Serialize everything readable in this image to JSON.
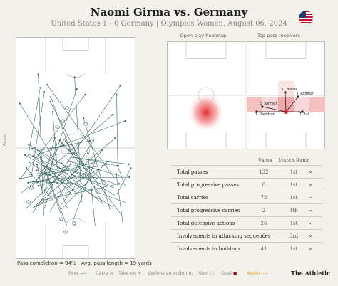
{
  "header": {
    "title": "Naomi Girma vs. Germany",
    "subtitle": "United States 1 - 0 Germany | Olympics Women, August 06, 2024",
    "flag_icon": "usa-flag-icon"
  },
  "pitch": {
    "side_label": "Attack",
    "pass_completion": "Pass completion = 94%",
    "avg_pass_length": "Avg. pass length = 19 yards"
  },
  "heatmap": {
    "title": "Open-play heatmap"
  },
  "receivers": {
    "title": "Top pass receivers",
    "players": [
      "L. Horan",
      "T. Rodman",
      "E. Sonnett",
      "T. Davidson",
      "T. Ball"
    ]
  },
  "stats": {
    "value_header": "Value",
    "rank_header": "Match Rank",
    "rows": [
      {
        "label": "Total passes",
        "value": "132",
        "rank": "1st"
      },
      {
        "label": "Total progressive passes",
        "value": "8",
        "rank": "1st"
      },
      {
        "label": "Total carries",
        "value": "75",
        "rank": "1st"
      },
      {
        "label": "Total progressive carries",
        "value": "2",
        "rank": "4th"
      },
      {
        "label": "Total defensive actions",
        "value": "26",
        "rank": "1st"
      },
      {
        "label": "Involvements in attacking sequences",
        "value": "6",
        "rank": "3rd"
      },
      {
        "label": "Involvements in build-up",
        "value": "41",
        "rank": "1st"
      }
    ]
  },
  "legend": {
    "pass": "Pass",
    "carry": "Carry",
    "takeon": "Take-on",
    "defensive": "Defensive action",
    "shot": "Shot",
    "goal": "Goal",
    "assist": "Assist"
  },
  "brand": "The Athletic",
  "colors": {
    "pass": "#3d6b63",
    "heat": "#e0202a",
    "goal": "#8b1a1a",
    "assist": "#f0a020"
  }
}
